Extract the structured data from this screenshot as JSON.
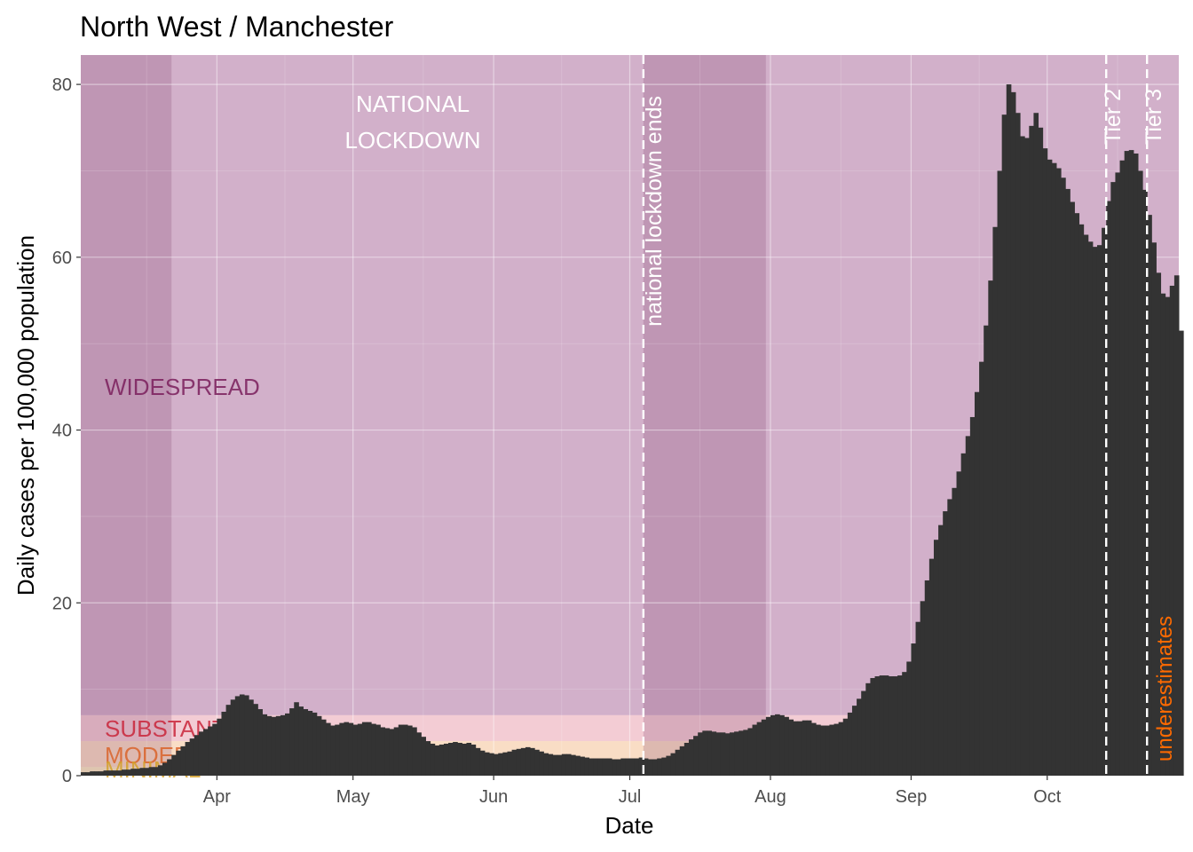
{
  "chart_data": {
    "type": "bar",
    "title": "North West / Manchester",
    "xlabel": "Date",
    "ylabel": "Daily cases per 100,000 population",
    "ylim": [
      0,
      83.4
    ],
    "xlim": [
      "2020-03-02",
      "2020-10-30"
    ],
    "grid": true,
    "y_ticks": [
      "0",
      "20",
      "40",
      "60",
      "80"
    ],
    "x_ticks": [
      {
        "date": "2020-04-01",
        "label": "Apr"
      },
      {
        "date": "2020-05-01",
        "label": "May"
      },
      {
        "date": "2020-06-01",
        "label": "Jun"
      },
      {
        "date": "2020-07-01",
        "label": "Jul"
      },
      {
        "date": "2020-08-01",
        "label": "Aug"
      },
      {
        "date": "2020-09-01",
        "label": "Sep"
      },
      {
        "date": "2020-10-01",
        "label": "Oct"
      }
    ],
    "bar_color": "#333333",
    "start_date": "2020-03-02",
    "values": [
      0.4,
      0.4,
      0.5,
      0.5,
      0.5,
      0.6,
      0.6,
      0.6,
      0.6,
      0.7,
      0.7,
      0.8,
      0.8,
      0.9,
      0.9,
      1.0,
      1.0,
      1.2,
      1.5,
      1.9,
      2.4,
      2.9,
      3.4,
      3.9,
      4.3,
      4.7,
      5.1,
      5.4,
      5.7,
      6.0,
      6.6,
      7.4,
      8.2,
      8.8,
      9.2,
      9.4,
      9.3,
      8.8,
      8.3,
      7.7,
      7.1,
      6.9,
      6.8,
      6.9,
      7.0,
      7.2,
      7.8,
      8.5,
      8.0,
      7.7,
      7.5,
      7.3,
      6.9,
      6.5,
      6.1,
      5.8,
      5.9,
      6.1,
      6.2,
      6.1,
      5.9,
      6.0,
      6.2,
      6.2,
      6.0,
      5.9,
      5.6,
      5.5,
      5.4,
      5.6,
      5.9,
      5.9,
      5.8,
      5.6,
      5.0,
      4.5,
      4.0,
      3.7,
      3.5,
      3.6,
      3.7,
      3.8,
      3.9,
      3.8,
      3.7,
      3.8,
      3.6,
      3.2,
      2.9,
      2.7,
      2.6,
      2.5,
      2.6,
      2.7,
      2.8,
      3.0,
      3.1,
      3.2,
      3.3,
      3.2,
      3.0,
      2.8,
      2.6,
      2.5,
      2.4,
      2.4,
      2.5,
      2.5,
      2.4,
      2.3,
      2.2,
      2.1,
      2.0,
      2.0,
      2.0,
      2.0,
      2.0,
      1.9,
      1.9,
      2.0,
      2.0,
      2.0,
      2.0,
      2.1,
      2.0,
      1.9,
      1.9,
      2.0,
      2.1,
      2.3,
      2.6,
      3.0,
      3.4,
      3.8,
      4.2,
      4.6,
      5.0,
      5.2,
      5.2,
      5.1,
      5.0,
      5.0,
      4.9,
      5.0,
      5.1,
      5.2,
      5.3,
      5.5,
      5.9,
      6.2,
      6.5,
      6.8,
      7.0,
      7.1,
      7.0,
      6.8,
      6.5,
      6.3,
      6.3,
      6.4,
      6.4,
      6.1,
      5.9,
      5.8,
      5.8,
      5.9,
      6.0,
      6.2,
      6.6,
      7.3,
      8.1,
      8.9,
      9.8,
      10.7,
      11.3,
      11.5,
      11.6,
      11.6,
      11.5,
      11.5,
      11.6,
      12.0,
      13.2,
      15.3,
      17.8,
      20.2,
      22.6,
      25.1,
      27.3,
      29.0,
      30.6,
      32.0,
      33.3,
      35.2,
      37.3,
      39.3,
      41.5,
      44.4,
      47.9,
      52.1,
      57.3,
      63.5,
      70.0,
      76.5,
      80.0,
      79.1,
      76.7,
      74.0,
      73.8,
      75.2,
      76.7,
      75.0,
      72.6,
      71.3,
      70.9,
      70.3,
      69.2,
      67.9,
      66.4,
      65.1,
      63.8,
      62.6,
      61.8,
      61.2,
      61.4,
      63.4,
      66.5,
      68.7,
      69.8,
      71.2,
      72.3,
      72.4,
      72.0,
      70.0,
      67.8,
      64.9,
      61.7,
      58.2,
      55.8,
      55.4,
      56.7,
      57.9,
      51.5
    ],
    "bands": [
      {
        "label": "WIDESPREAD",
        "from": 7.0,
        "to": 83.4,
        "color": "#9b4f8a",
        "label_color": "#7a1f5c"
      },
      {
        "label": "SUBSTANTIAL",
        "from": 4.0,
        "to": 7.0,
        "color": "#e58ea0",
        "label_color": "#c9243a"
      },
      {
        "label": "MODERATE",
        "from": 1.0,
        "to": 4.0,
        "color": "#f2b47e",
        "label_color": "#d9632a"
      },
      {
        "label": "MINIMAL",
        "from": 0.0,
        "to": 1.0,
        "color": "#f5d77a",
        "label_color": "#d4a02a"
      }
    ],
    "shaded_periods": [
      {
        "from": "2020-03-02",
        "to": "2020-03-22"
      },
      {
        "from": "2020-07-04",
        "to": "2020-07-31"
      }
    ],
    "lockdown_label": [
      "NATIONAL",
      "LOCKDOWN"
    ],
    "events": [
      {
        "date": "2020-07-04",
        "label": "national lockdown ends"
      },
      {
        "date": "2020-10-14",
        "label": "Tier 2"
      },
      {
        "date": "2020-10-23",
        "label": "Tier 3"
      }
    ],
    "underestimates_label": "underestimates",
    "underestimates_color": "#ff6a00"
  }
}
